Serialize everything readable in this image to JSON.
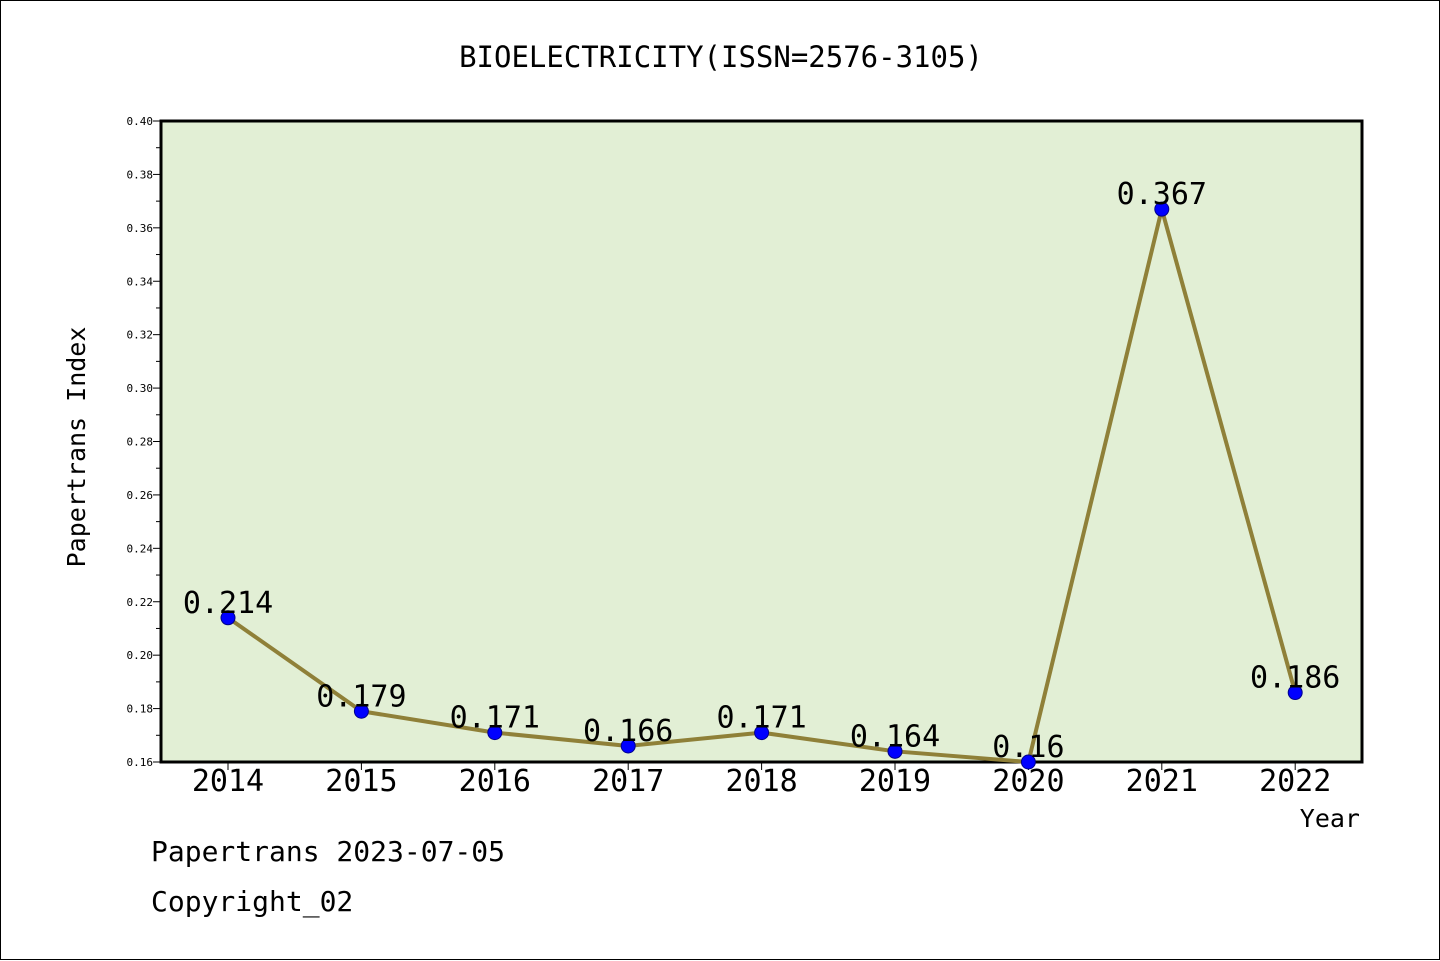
{
  "chart_data": {
    "type": "line",
    "title": "BIOELECTRICITY(ISSN=2576-3105)",
    "xlabel": "Year",
    "ylabel": "Papertrans Index",
    "categories": [
      "2014",
      "2015",
      "2016",
      "2017",
      "2018",
      "2019",
      "2020",
      "2021",
      "2022"
    ],
    "values": [
      0.214,
      0.179,
      0.171,
      0.166,
      0.171,
      0.164,
      0.16,
      0.367,
      0.186
    ],
    "data_labels": [
      "0.214",
      "0.179",
      "0.171",
      "0.166",
      "0.171",
      "0.164",
      "0.16",
      "0.367",
      "0.186"
    ],
    "ylim": [
      0.16,
      0.4
    ],
    "yticks": [
      "0.16",
      "0.18",
      "0.20",
      "0.22",
      "0.24",
      "0.26",
      "0.28",
      "0.30",
      "0.32",
      "0.34",
      "0.36",
      "0.38",
      "0.40"
    ],
    "grid": false,
    "legend": "none",
    "colors": {
      "plot_background": "#e2efd5",
      "line": "#8f8038",
      "marker": "#0000ff"
    }
  },
  "footer": {
    "line1": "Papertrans 2023-07-05",
    "line2": "Copyright_02"
  }
}
